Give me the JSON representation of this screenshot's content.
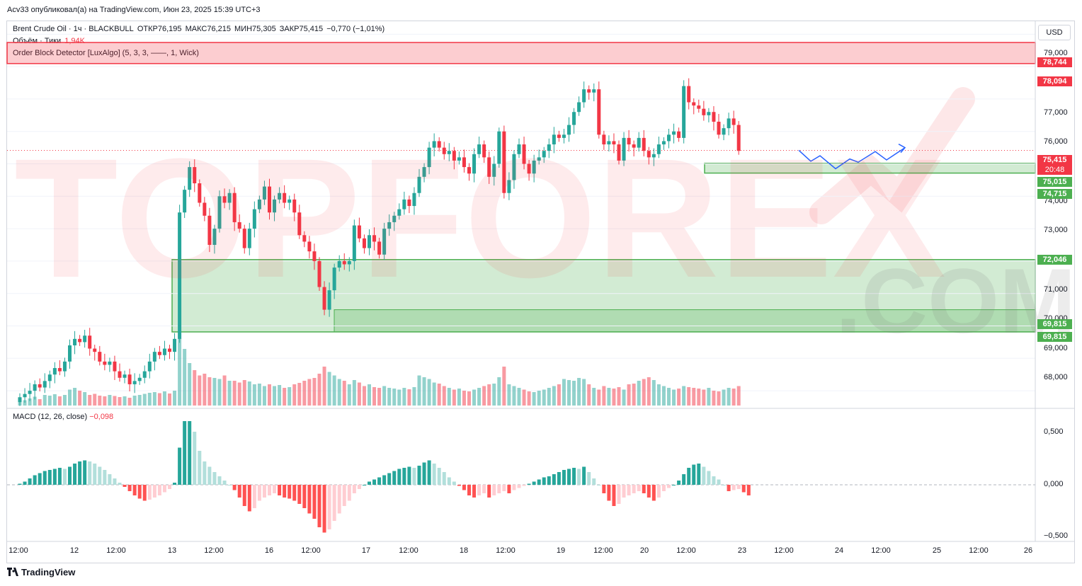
{
  "header": {
    "text": "Acv33 опубликовал(а) на TradingView.com, Июн 23, 2025 15:39 UTC+3"
  },
  "legend": {
    "symbol": "Brent Crude Oil · 1ч · BLACKBULL",
    "open": "ОТКР76,195",
    "high": "МАКС76,215",
    "low": "МИН75,305",
    "close": "ЗАКР75,415",
    "change": "−0,770 (−1,01%)",
    "volume_label": "Объём · Тики",
    "volume_value": "1,94K",
    "indicator": "Order Block Detector [LuxAlgo] (5, 3, 3, ——, 1, Wick)",
    "macd_label": "MACD (12, 26, close)",
    "macd_value": "−0,098"
  },
  "currency": "USD",
  "watermark": {
    "text": "TOPFOREX",
    "sub": ".COM"
  },
  "brand": "TradingView",
  "colors": {
    "up": "#26a69a",
    "down": "#f23645",
    "zone_supply": "#f23645",
    "zone_demand": "#4caf50",
    "projection": "#2962ff"
  },
  "price_labels": {
    "p1": "78,744",
    "p2": "78,094",
    "p3": "75,415",
    "p3_timer": "20:48",
    "p4": "75,015",
    "p5": "74,715",
    "p6": "72,046",
    "p7": "69,815",
    "p8": "69,815"
  },
  "chart_data": {
    "type": "candlestick",
    "ylim": [
      67.5,
      79.4
    ],
    "y_ticks": [
      "79,000",
      "78,000",
      "77,000",
      "76,000",
      "75,000",
      "74,000",
      "73,000",
      "72,000",
      "71,000",
      "70,000",
      "69,000",
      "68,000"
    ],
    "x_ticks": [
      "12:00",
      "12",
      "12:00",
      "13",
      "12:00",
      "16",
      "12:00",
      "17",
      "12:00",
      "18",
      "12:00",
      "19",
      "12:00",
      "20",
      "12:00",
      "23",
      "12:00",
      "24",
      "12:00",
      "25",
      "12:00",
      "26"
    ],
    "macd_ticks": [
      "0,500",
      "0,000",
      "−0,500"
    ],
    "macd_ylim": [
      -0.55,
      0.7
    ],
    "closes": [
      67.8,
      67.9,
      68.0,
      68.2,
      68.1,
      68.3,
      68.5,
      68.7,
      68.6,
      68.9,
      69.4,
      69.6,
      69.5,
      69.7,
      69.3,
      69.2,
      68.9,
      68.8,
      68.9,
      68.6,
      68.4,
      68.5,
      68.2,
      68.3,
      68.4,
      68.6,
      68.9,
      69.2,
      69.1,
      69.3,
      69.2,
      69.6,
      73.5,
      74.2,
      74.9,
      74.4,
      73.8,
      73.4,
      72.5,
      73.0,
      74.0,
      73.8,
      74.1,
      73.2,
      73.0,
      72.4,
      73.0,
      73.6,
      73.9,
      74.3,
      73.5,
      73.9,
      74.1,
      73.8,
      73.9,
      73.5,
      72.8,
      72.6,
      72.3,
      72.0,
      71.2,
      70.5,
      71.1,
      71.8,
      72.0,
      71.9,
      72.0,
      73.1,
      72.7,
      72.4,
      72.8,
      72.6,
      72.2,
      73.0,
      73.2,
      73.4,
      73.6,
      73.9,
      73.7,
      74.1,
      74.6,
      74.9,
      75.5,
      75.7,
      75.5,
      75.3,
      75.4,
      75.1,
      75.2,
      74.9,
      74.7,
      75.3,
      75.6,
      75.2,
      74.6,
      75.0,
      76.0,
      74.1,
      74.5,
      75.3,
      75.6,
      75.0,
      74.7,
      75.1,
      75.2,
      75.4,
      75.6,
      75.9,
      75.8,
      75.9,
      76.2,
      76.6,
      76.9,
      77.3,
      77.2,
      77.3,
      75.9,
      75.6,
      75.7,
      75.6,
      75.1,
      75.8,
      75.6,
      75.5,
      75.8,
      75.4,
      75.2,
      75.3,
      75.6,
      75.7,
      75.9,
      76.0,
      75.8,
      77.4,
      76.9,
      76.8,
      76.7,
      76.5,
      76.6,
      76.3,
      75.9,
      76.1,
      76.4,
      76.2,
      75.4
    ],
    "volumes": [
      0.1,
      0.15,
      0.2,
      0.25,
      0.18,
      0.3,
      0.28,
      0.32,
      0.26,
      0.3,
      0.45,
      0.5,
      0.42,
      0.38,
      0.3,
      0.33,
      0.28,
      0.26,
      0.3,
      0.27,
      0.24,
      0.26,
      0.22,
      0.28,
      0.3,
      0.33,
      0.36,
      0.38,
      0.35,
      0.4,
      0.34,
      0.42,
      1.9,
      1.6,
      1.2,
      1.0,
      0.85,
      0.9,
      0.8,
      0.78,
      0.75,
      0.85,
      0.7,
      0.7,
      0.65,
      0.72,
      0.68,
      0.6,
      0.62,
      0.55,
      0.6,
      0.55,
      0.58,
      0.5,
      0.52,
      0.6,
      0.64,
      0.7,
      0.75,
      0.78,
      0.9,
      1.1,
      0.95,
      0.85,
      0.75,
      0.7,
      0.6,
      0.72,
      0.65,
      0.55,
      0.6,
      0.52,
      0.5,
      0.55,
      0.5,
      0.48,
      0.45,
      0.5,
      0.46,
      0.52,
      0.85,
      0.8,
      0.75,
      0.65,
      0.62,
      0.55,
      0.5,
      0.45,
      0.48,
      0.42,
      0.4,
      0.45,
      0.5,
      0.55,
      0.6,
      0.62,
      0.8,
      1.1,
      0.6,
      0.55,
      0.5,
      0.45,
      0.4,
      0.38,
      0.42,
      0.45,
      0.5,
      0.55,
      0.6,
      0.75,
      0.72,
      0.7,
      0.78,
      0.75,
      0.6,
      0.5,
      0.45,
      0.55,
      0.5,
      0.48,
      0.52,
      0.45,
      0.6,
      0.62,
      0.7,
      0.75,
      0.8,
      0.72,
      0.6,
      0.55,
      0.5,
      0.45,
      0.48,
      0.55,
      0.52,
      0.5,
      0.48,
      0.45,
      0.5,
      0.42,
      0.4,
      0.45,
      0.5,
      0.48,
      0.55
    ],
    "macd_hist": [
      0.01,
      0.03,
      0.06,
      0.09,
      0.11,
      0.13,
      0.14,
      0.15,
      0.16,
      0.15,
      0.17,
      0.2,
      0.22,
      0.23,
      0.22,
      0.2,
      0.17,
      0.14,
      0.1,
      0.06,
      0.02,
      -0.02,
      -0.06,
      -0.1,
      -0.13,
      -0.15,
      -0.14,
      -0.12,
      -0.1,
      -0.07,
      -0.04,
      0.02,
      0.35,
      0.6,
      0.6,
      0.5,
      0.32,
      0.22,
      0.17,
      0.12,
      0.08,
      0.04,
      0.0,
      -0.05,
      -0.12,
      -0.2,
      -0.25,
      -0.22,
      -0.15,
      -0.12,
      -0.1,
      -0.08,
      -0.1,
      -0.12,
      -0.13,
      -0.15,
      -0.18,
      -0.22,
      -0.27,
      -0.32,
      -0.4,
      -0.45,
      -0.42,
      -0.34,
      -0.27,
      -0.2,
      -0.15,
      -0.08,
      -0.04,
      0.0,
      0.03,
      0.05,
      0.07,
      0.09,
      0.11,
      0.13,
      0.15,
      0.16,
      0.17,
      0.16,
      0.18,
      0.21,
      0.23,
      0.2,
      0.16,
      0.12,
      0.07,
      0.03,
      -0.01,
      -0.05,
      -0.1,
      -0.12,
      -0.1,
      -0.08,
      -0.12,
      -0.1,
      -0.08,
      -0.06,
      -0.08,
      -0.05,
      -0.03,
      -0.01,
      0.01,
      0.03,
      0.05,
      0.07,
      0.08,
      0.1,
      0.12,
      0.14,
      0.15,
      0.16,
      0.15,
      0.17,
      0.12,
      0.06,
      0.0,
      -0.08,
      -0.15,
      -0.2,
      -0.18,
      -0.12,
      -0.1,
      -0.08,
      -0.06,
      -0.08,
      -0.12,
      -0.15,
      -0.12,
      -0.06,
      -0.03,
      0.0,
      0.04,
      0.1,
      0.16,
      0.19,
      0.2,
      0.17,
      0.13,
      0.08,
      0.05,
      0.0,
      -0.06,
      -0.05,
      -0.04,
      -0.07,
      -0.1
    ]
  }
}
